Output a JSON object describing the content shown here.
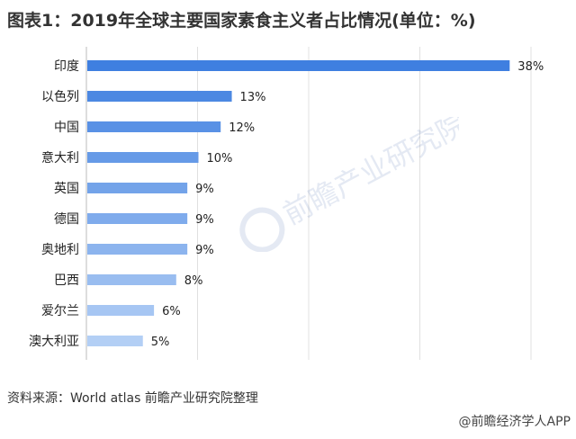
{
  "header": {
    "title": "图表1：2019年全球主要国家素食主义者占比情况(单位：%)"
  },
  "footer": {
    "source": "资料来源：World atlas 前瞻产业研究院整理",
    "credit": "@前瞻经济学人APP"
  },
  "watermark": {
    "text": "前瞻产业研究院"
  },
  "colors": {
    "bar_dark": "#3f7fe0",
    "bar_light": "#b3cff5",
    "axis": "#bbbbbb",
    "grid": "#e0e0e0"
  },
  "chart_data": {
    "type": "bar",
    "orientation": "horizontal",
    "title": "图表1：2019年全球主要国家素食主义者占比情况(单位：%)",
    "categories": [
      "印度",
      "以色列",
      "中国",
      "意大利",
      "英国",
      "德国",
      "奥地利",
      "巴西",
      "爱尔兰",
      "澳大利亚"
    ],
    "values": [
      38,
      13,
      12,
      10,
      9,
      9,
      9,
      8,
      6,
      5
    ],
    "value_labels": [
      "38%",
      "13%",
      "12%",
      "10%",
      "9%",
      "9%",
      "9%",
      "8%",
      "6%",
      "5%"
    ],
    "xlim": [
      0,
      40
    ],
    "grid": true,
    "legend": "none"
  }
}
